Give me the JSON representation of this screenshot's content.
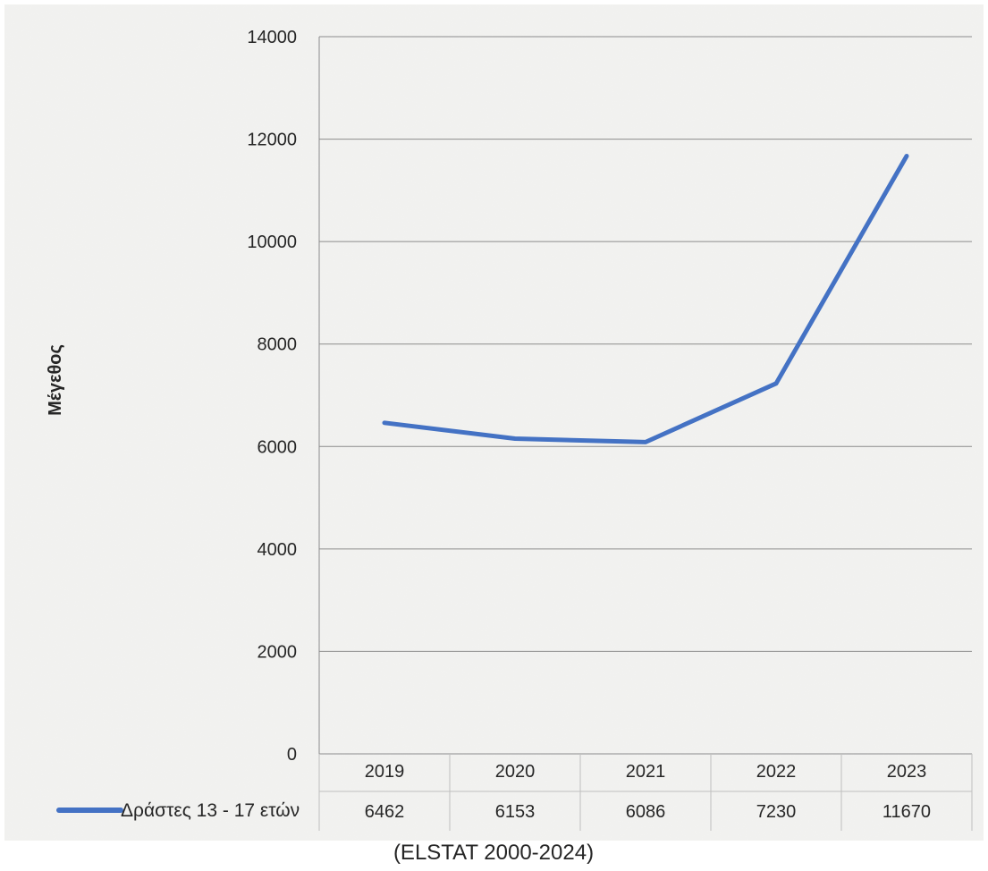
{
  "chart_data": {
    "type": "line",
    "title": "",
    "xlabel": "",
    "ylabel": "Μέγεθος",
    "categories": [
      "2019",
      "2020",
      "2021",
      "2022",
      "2023"
    ],
    "series": [
      {
        "name": "Δράστες 13 - 17 ετών",
        "values": [
          6462,
          6153,
          6086,
          7230,
          11670
        ],
        "color": "#4472C4"
      }
    ],
    "yticks": [
      0,
      2000,
      4000,
      6000,
      8000,
      10000,
      12000,
      14000
    ],
    "ylim": [
      0,
      14000
    ],
    "grid": true,
    "legend": "data-table-left",
    "data_table": true
  },
  "caption": "(ELSTAT 2000-2024)",
  "colors": {
    "background": "#f1f1ef",
    "gridline": "#8c8c8c",
    "series": "#4472C4",
    "text": "#262626"
  }
}
